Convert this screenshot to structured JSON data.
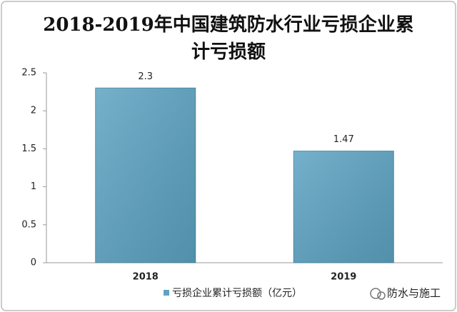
{
  "chart_data": {
    "type": "bar",
    "title": "2018-2019年中国建筑防水行业亏损企业累计亏损额",
    "categories": [
      "2018",
      "2019"
    ],
    "series": [
      {
        "name": "亏损企业累计亏损额（亿元）",
        "color": "#5da3c2",
        "values": [
          2.3,
          1.47
        ]
      }
    ],
    "ylim": [
      0,
      2.5
    ],
    "yticks": [
      0,
      0.5,
      1,
      1.5,
      2,
      2.5
    ],
    "grid": false,
    "watermark": "防水与施工"
  }
}
